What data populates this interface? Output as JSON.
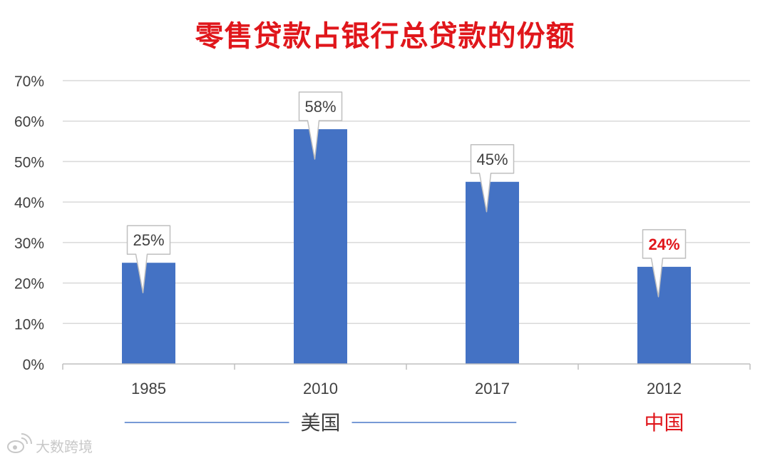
{
  "colors": {
    "title": "#e0161b",
    "bar": "#4472c4",
    "grid": "#d9d9d9",
    "axis_text": "#404040",
    "highlight_text": "#e0161b",
    "group_line": "#4a78c8",
    "callout_border": "#bfbfbf"
  },
  "chart_data": {
    "type": "bar",
    "title": "零售贷款占银行总贷款的份额",
    "xlabel": "",
    "ylabel": "",
    "categories": [
      "1985",
      "2010",
      "2017",
      "2012"
    ],
    "values": [
      25,
      58,
      45,
      24
    ],
    "data_labels": [
      "25%",
      "58%",
      "45%",
      "24%"
    ],
    "highlight": [
      false,
      false,
      false,
      true
    ],
    "ylim": [
      0,
      70
    ],
    "yticks": [
      0,
      10,
      20,
      30,
      40,
      50,
      60,
      70
    ],
    "ytick_labels": [
      "0%",
      "10%",
      "20%",
      "30%",
      "40%",
      "50%",
      "60%",
      "70%"
    ],
    "grid": true,
    "legend": "none",
    "groups": [
      {
        "label": "美国",
        "categories": [
          "1985",
          "2010",
          "2017"
        ],
        "color": "#404040"
      },
      {
        "label": "中国",
        "categories": [
          "2012"
        ],
        "color": "#e0161b"
      }
    ]
  },
  "watermark": {
    "text": "大数跨境",
    "icon": "weibo-icon"
  }
}
